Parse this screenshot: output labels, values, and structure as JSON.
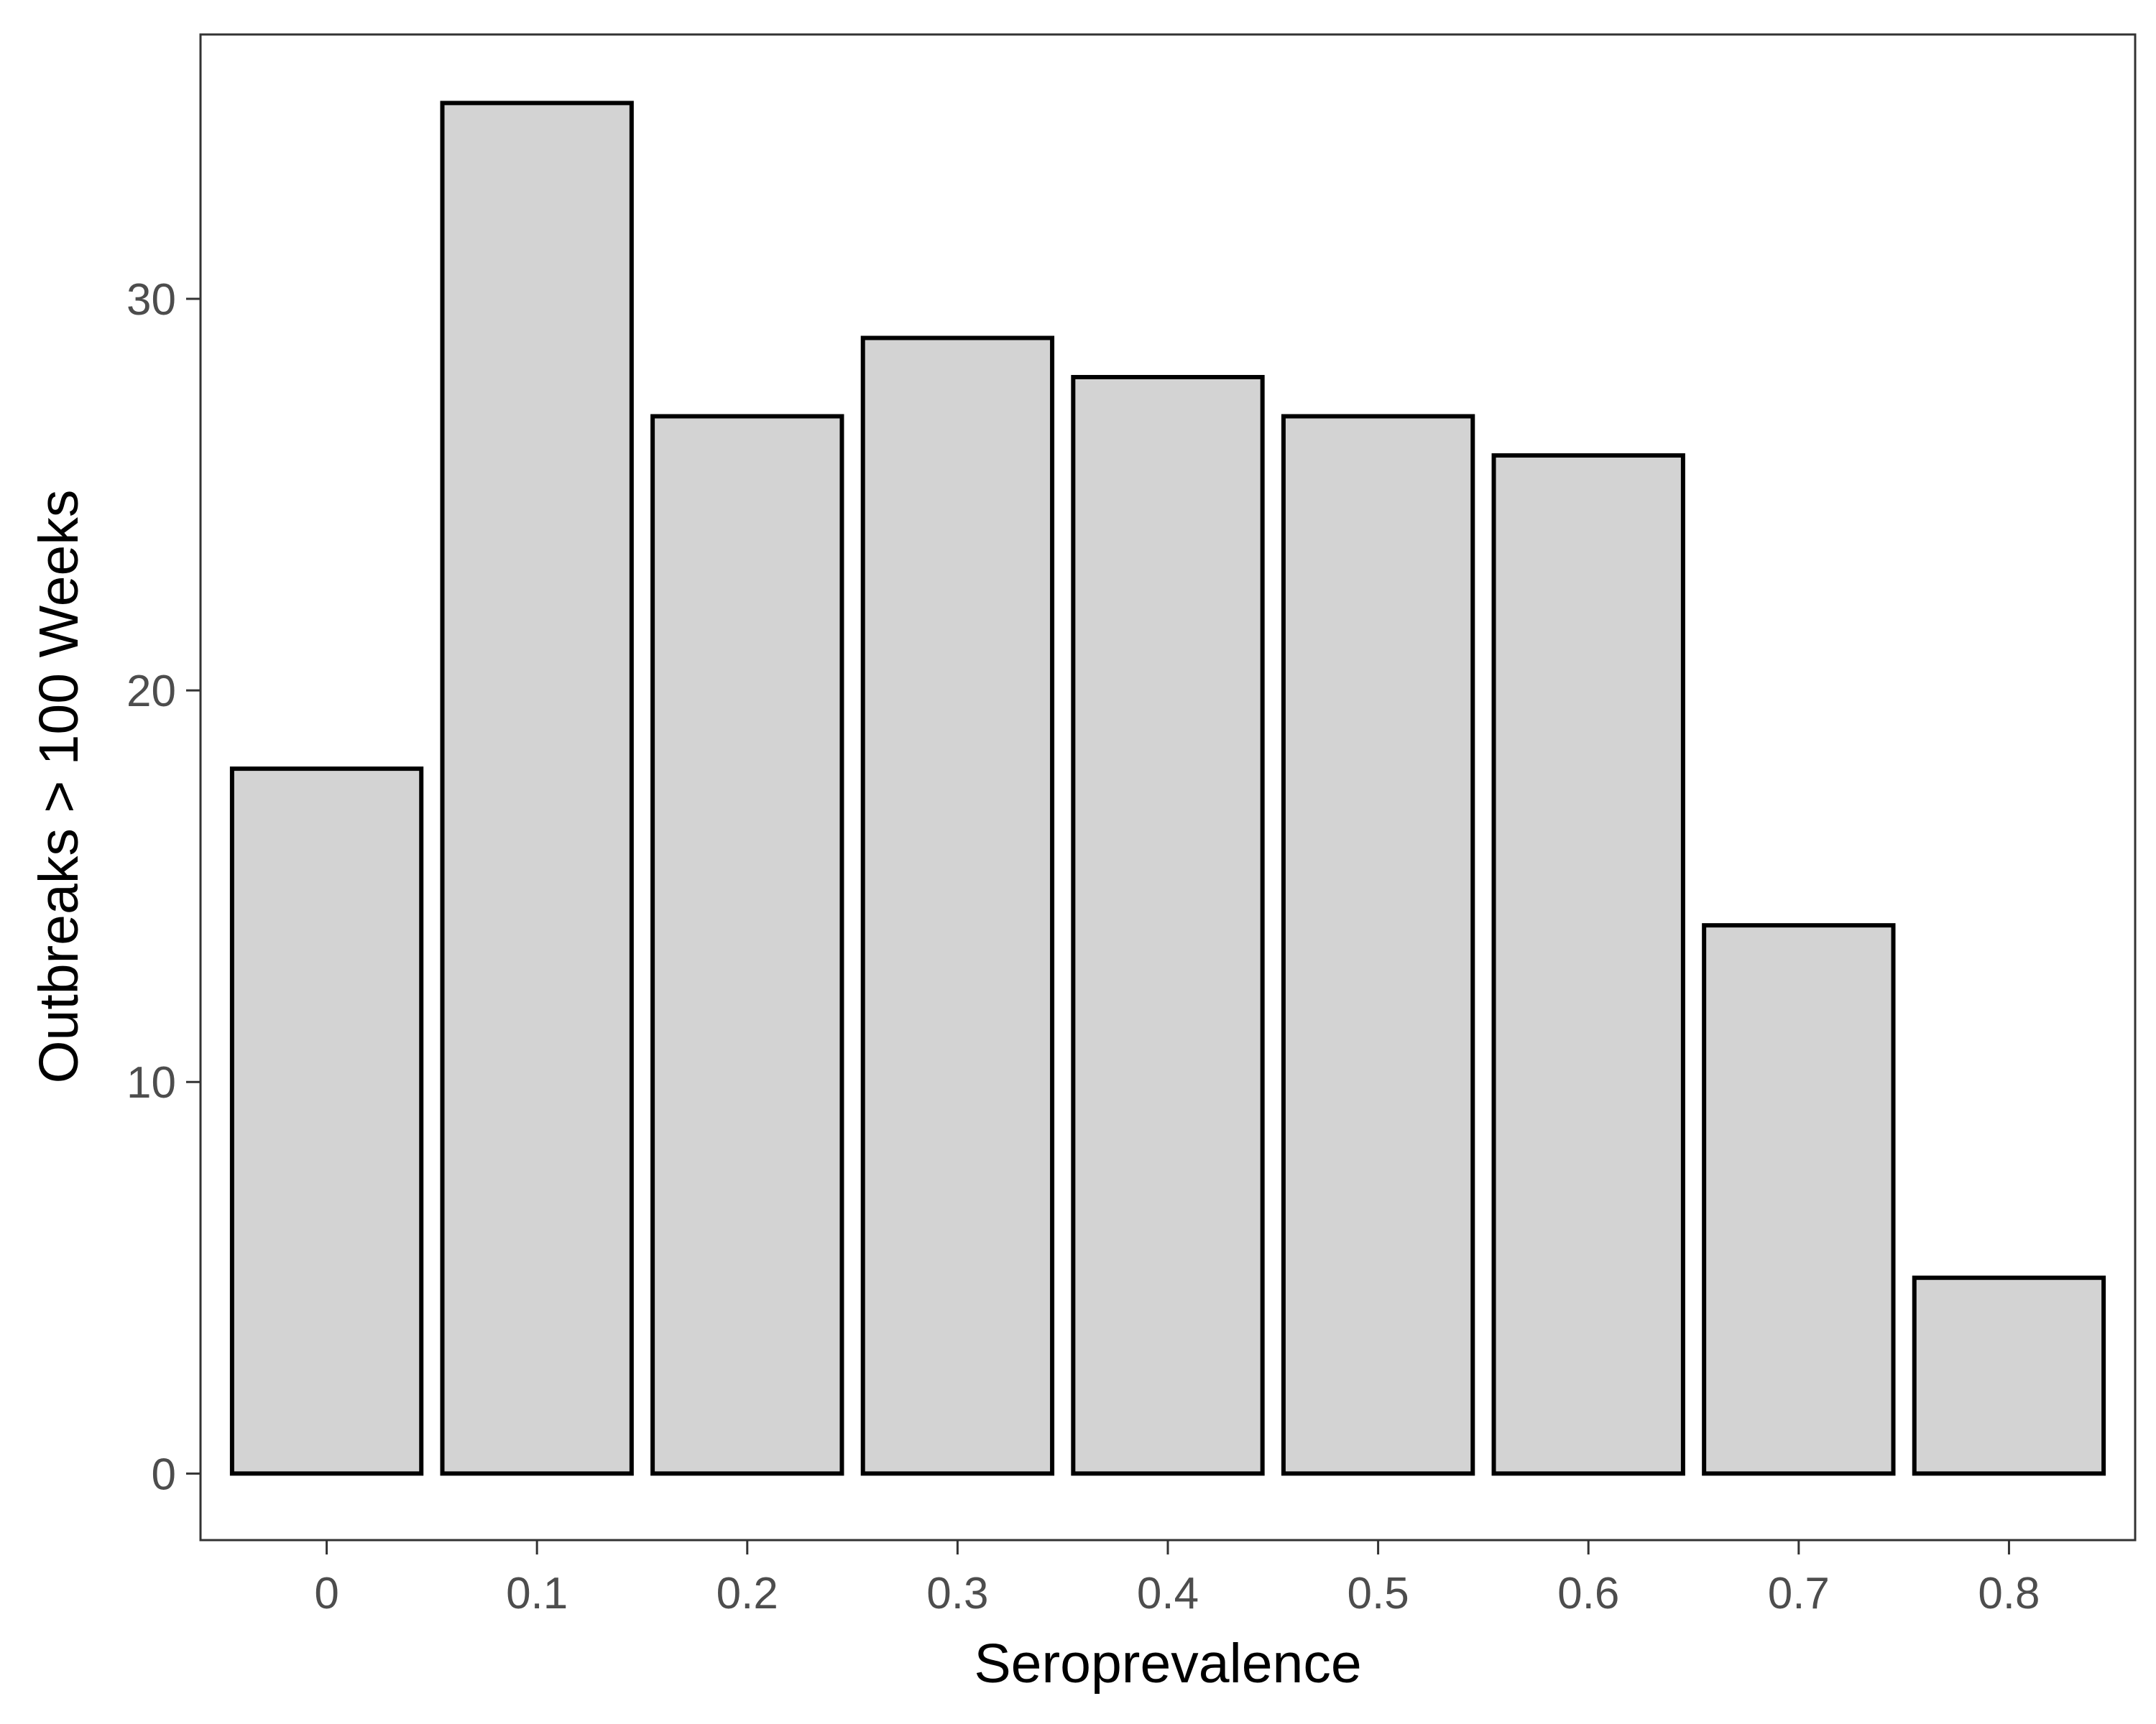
{
  "chart_data": {
    "type": "bar",
    "categories": [
      "0",
      "0.1",
      "0.2",
      "0.3",
      "0.4",
      "0.5",
      "0.6",
      "0.7",
      "0.8"
    ],
    "values": [
      18,
      35,
      27,
      29,
      28,
      27,
      26,
      14,
      5
    ],
    "xlabel": "Seroprevalence",
    "ylabel": "Outbreaks > 100 Weeks",
    "yticks": [
      0,
      10,
      20,
      30
    ],
    "ytick_labels": [
      "0",
      "10",
      "20",
      "30"
    ],
    "ylim": [
      -1.7,
      36.75
    ],
    "grid": false,
    "legend": "none",
    "colors": {
      "bar_fill": "#d3d3d3",
      "bar_stroke": "#000000",
      "panel_border": "#333333",
      "tick_label": "#4d4d4d",
      "axis_title": "#000000"
    }
  }
}
